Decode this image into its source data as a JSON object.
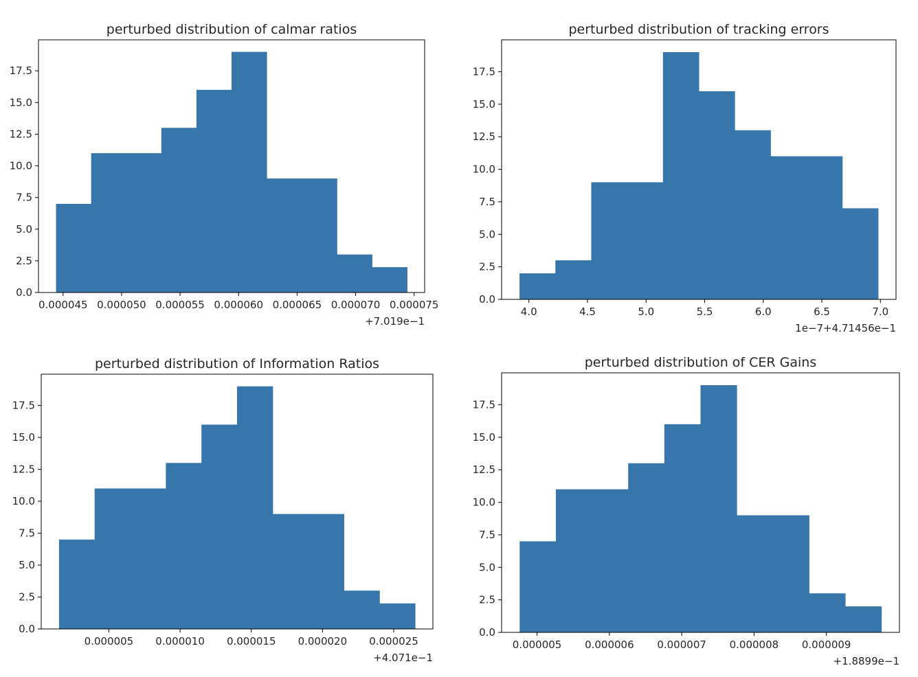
{
  "chart_data": [
    {
      "type": "bar",
      "title": "perturbed distribution of calmar ratios",
      "bin_edges": [
        4.44e-05,
        4.74e-05,
        5.04e-05,
        5.34e-05,
        5.64e-05,
        5.94e-05,
        6.24e-05,
        6.54e-05,
        6.84e-05,
        7.14e-05,
        7.44e-05
      ],
      "values": [
        7,
        11,
        11,
        13,
        16,
        19,
        9,
        9,
        3,
        2
      ],
      "x_ticks": [
        4.5e-05,
        5e-05,
        5.5e-05,
        6e-05,
        6.5e-05,
        7e-05,
        7.5e-05
      ],
      "x_tick_labels": [
        "0.000045",
        "0.000050",
        "0.000055",
        "0.000060",
        "0.000065",
        "0.000070",
        "0.000075"
      ],
      "x_offset_label": "+7.019e−1",
      "xlim": [
        4.29e-05,
        7.59e-05
      ],
      "y_ticks": [
        0,
        2.5,
        5,
        7.5,
        10,
        12.5,
        15,
        17.5
      ],
      "y_tick_labels": [
        "0.0",
        "2.5",
        "5.0",
        "7.5",
        "10.0",
        "12.5",
        "15.0",
        "17.5"
      ],
      "ylim": [
        0,
        19.95
      ],
      "color": "#3776ab"
    },
    {
      "type": "bar",
      "title": "perturbed distribution of tracking errors",
      "bin_edges": [
        3.92,
        4.226,
        4.532,
        4.838,
        5.144,
        5.45,
        5.756,
        6.062,
        6.368,
        6.674,
        6.98
      ],
      "values": [
        2,
        3,
        9,
        9,
        19,
        16,
        13,
        11,
        11,
        7
      ],
      "x_ticks": [
        4.0,
        4.5,
        5.0,
        5.5,
        6.0,
        6.5,
        7.0
      ],
      "x_tick_labels": [
        "4.0",
        "4.5",
        "5.0",
        "5.5",
        "6.0",
        "6.5",
        "7.0"
      ],
      "x_offset_label": "1e−7+4.71456e−1",
      "xlim": [
        3.767,
        7.133
      ],
      "y_ticks": [
        0,
        2.5,
        5,
        7.5,
        10,
        12.5,
        15,
        17.5
      ],
      "y_tick_labels": [
        "0.0",
        "2.5",
        "5.0",
        "7.5",
        "10.0",
        "12.5",
        "15.0",
        "17.5"
      ],
      "ylim": [
        0,
        19.95
      ],
      "color": "#3776ab"
    },
    {
      "type": "bar",
      "title": "perturbed distribution of Information Ratios",
      "bin_edges": [
        1.5e-06,
        4e-06,
        6.5e-06,
        9e-06,
        1.15e-05,
        1.4e-05,
        1.65e-05,
        1.9e-05,
        2.15e-05,
        2.4e-05,
        2.65e-05
      ],
      "values": [
        7,
        11,
        11,
        13,
        16,
        19,
        9,
        9,
        3,
        2
      ],
      "x_ticks": [
        5e-06,
        1e-05,
        1.5e-05,
        2e-05,
        2.5e-05
      ],
      "x_tick_labels": [
        "0.000005",
        "0.000010",
        "0.000015",
        "0.000020",
        "0.000025"
      ],
      "x_offset_label": "+4.071e−1",
      "xlim": [
        2.5e-07,
        2.775e-05
      ],
      "y_ticks": [
        0,
        2.5,
        5,
        7.5,
        10,
        12.5,
        15,
        17.5
      ],
      "y_tick_labels": [
        "0.0",
        "2.5",
        "5.0",
        "7.5",
        "10.0",
        "12.5",
        "15.0",
        "17.5"
      ],
      "ylim": [
        0,
        19.95
      ],
      "color": "#3776ab"
    },
    {
      "type": "bar",
      "title": "perturbed distribution of CER Gains",
      "bin_edges": [
        4.76e-06,
        5.26e-06,
        5.76e-06,
        6.26e-06,
        6.76e-06,
        7.26e-06,
        7.76e-06,
        8.26e-06,
        8.76e-06,
        9.26e-06,
        9.76e-06
      ],
      "values": [
        7,
        11,
        11,
        13,
        16,
        19,
        9,
        9,
        3,
        2
      ],
      "x_ticks": [
        5e-06,
        6e-06,
        7e-06,
        8e-06,
        9e-06
      ],
      "x_tick_labels": [
        "0.000005",
        "0.000006",
        "0.000007",
        "0.000008",
        "0.000009"
      ],
      "x_offset_label": "+1.8899e−1",
      "xlim": [
        4.51e-06,
        1.001e-05
      ],
      "y_ticks": [
        0,
        2.5,
        5,
        7.5,
        10,
        12.5,
        15,
        17.5
      ],
      "y_tick_labels": [
        "0.0",
        "2.5",
        "5.0",
        "7.5",
        "10.0",
        "12.5",
        "15.0",
        "17.5"
      ],
      "ylim": [
        0,
        19.95
      ],
      "color": "#3776ab"
    }
  ]
}
